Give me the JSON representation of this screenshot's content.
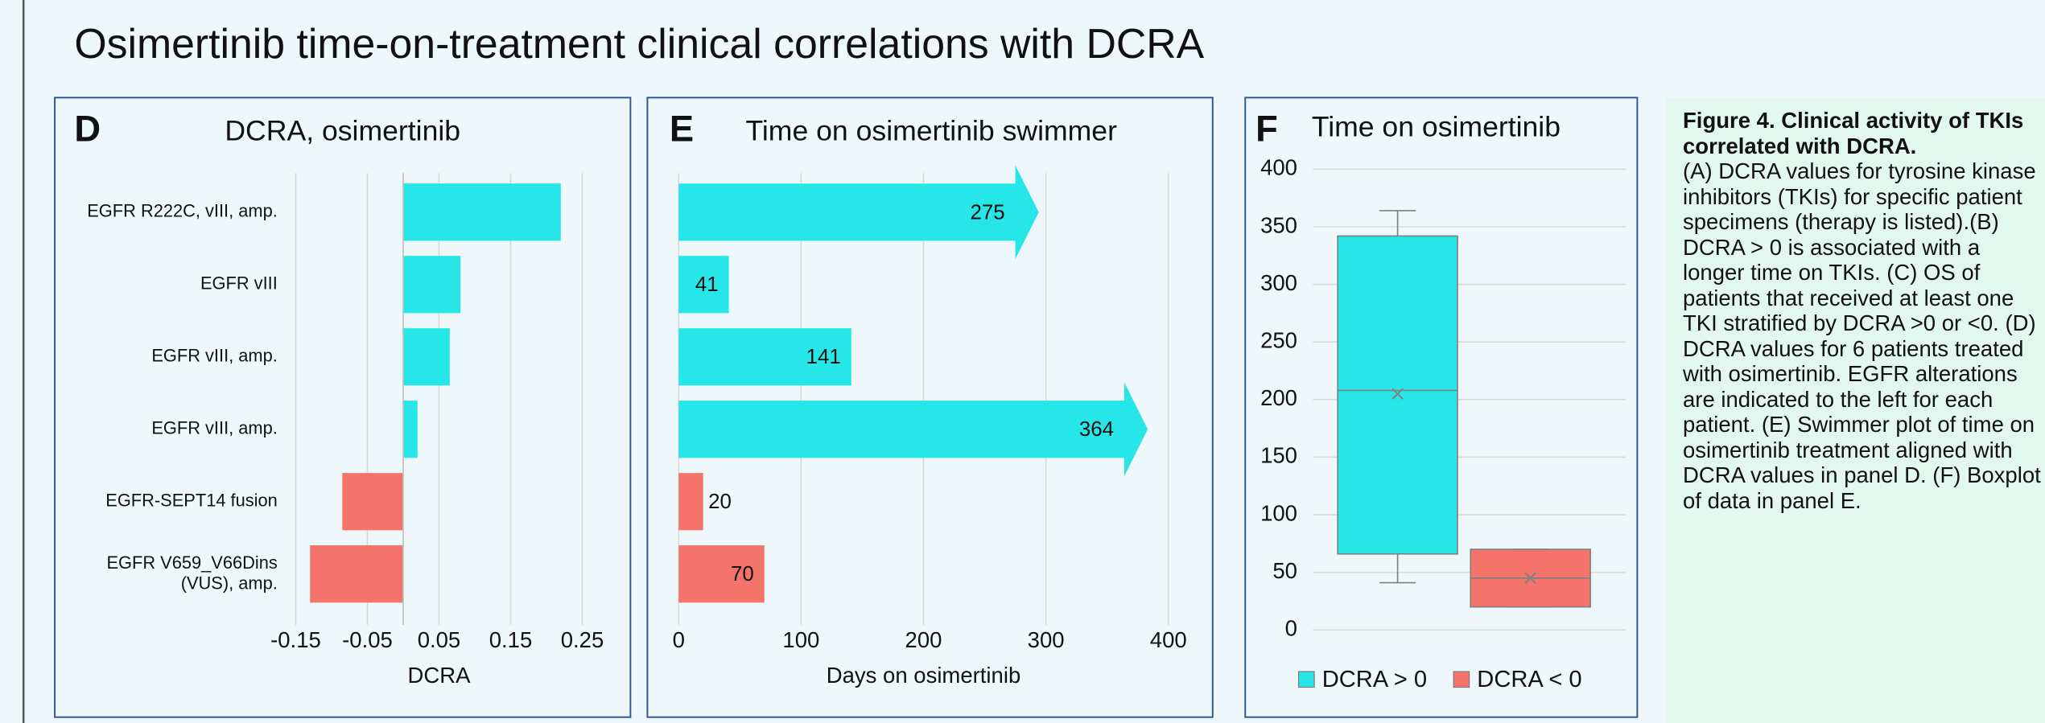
{
  "title": "Osimertinib time-on-treatment clinical correlations with DCRA",
  "caption": {
    "heading": "Figure 4. Clinical activity of TKIs correlated with DCRA.",
    "text": "(A) DCRA values for tyrosine kinase inhibitors (TKIs) for specific patient specimens (therapy is listed).(B) DCRA > 0 is associated with a longer time on TKIs. (C) OS of patients that received at least one TKI stratified by DCRA >0 or <0. (D) DCRA values for 6 patients treated with osimertinib. EGFR alterations are indicated to the left for each patient. (E) Swimmer plot of time on osimertinib treatment aligned with DCRA values in panel D. (F) Boxplot of data in panel E."
  },
  "chart_data": [
    {
      "type": "hbar",
      "panel": "D",
      "title": "DCRA, osimertinib",
      "categories": [
        "EGFR R222C, vIII, amp.",
        "EGFR vIII",
        "EGFR vIII, amp.",
        "EGFR vIII, amp.",
        "EGFR-SEPT14 fusion",
        "EGFR V659_V66Dins\n(VUS), amp."
      ],
      "values": [
        0.22,
        0.08,
        0.065,
        0.02,
        -0.085,
        -0.13
      ],
      "colors": [
        "#27e6e8",
        "#27e6e8",
        "#27e6e8",
        "#27e6e8",
        "#f4736b",
        "#f4736b"
      ],
      "xlim": [
        -0.15,
        0.25
      ],
      "xticks": [
        -0.15,
        -0.05,
        0.05,
        0.15,
        0.25
      ],
      "xlabel": "DCRA",
      "grid": true
    },
    {
      "type": "swimmer",
      "panel": "E",
      "title": "Time on osimertinib swimmer",
      "values": [
        275,
        41,
        141,
        364,
        20,
        70
      ],
      "colors": [
        "#27e6e8",
        "#27e6e8",
        "#27e6e8",
        "#27e6e8",
        "#f4736b",
        "#f4736b"
      ],
      "ongoing": [
        true,
        false,
        false,
        true,
        false,
        false
      ],
      "xlim": [
        0,
        400
      ],
      "xticks": [
        0,
        100,
        200,
        300,
        400
      ],
      "xlabel": "Days on osimertinib",
      "grid": true
    },
    {
      "type": "box",
      "panel": "F",
      "title": "Time on osimertinib",
      "series": [
        {
          "name": "DCRA > 0",
          "color": "#27e6e8",
          "whislo": 41,
          "q1": 66,
          "median": 208,
          "q3": 342,
          "whishi": 364,
          "mean": 205
        },
        {
          "name": "DCRA < 0",
          "color": "#f4736b",
          "whislo": 20,
          "q1": 20,
          "median": 45,
          "q3": 70,
          "whishi": 70,
          "mean": 45
        }
      ],
      "ylim": [
        0,
        400
      ],
      "yticks": [
        0,
        50,
        100,
        150,
        200,
        250,
        300,
        350,
        400
      ],
      "grid": true,
      "legend": "bottom"
    }
  ]
}
